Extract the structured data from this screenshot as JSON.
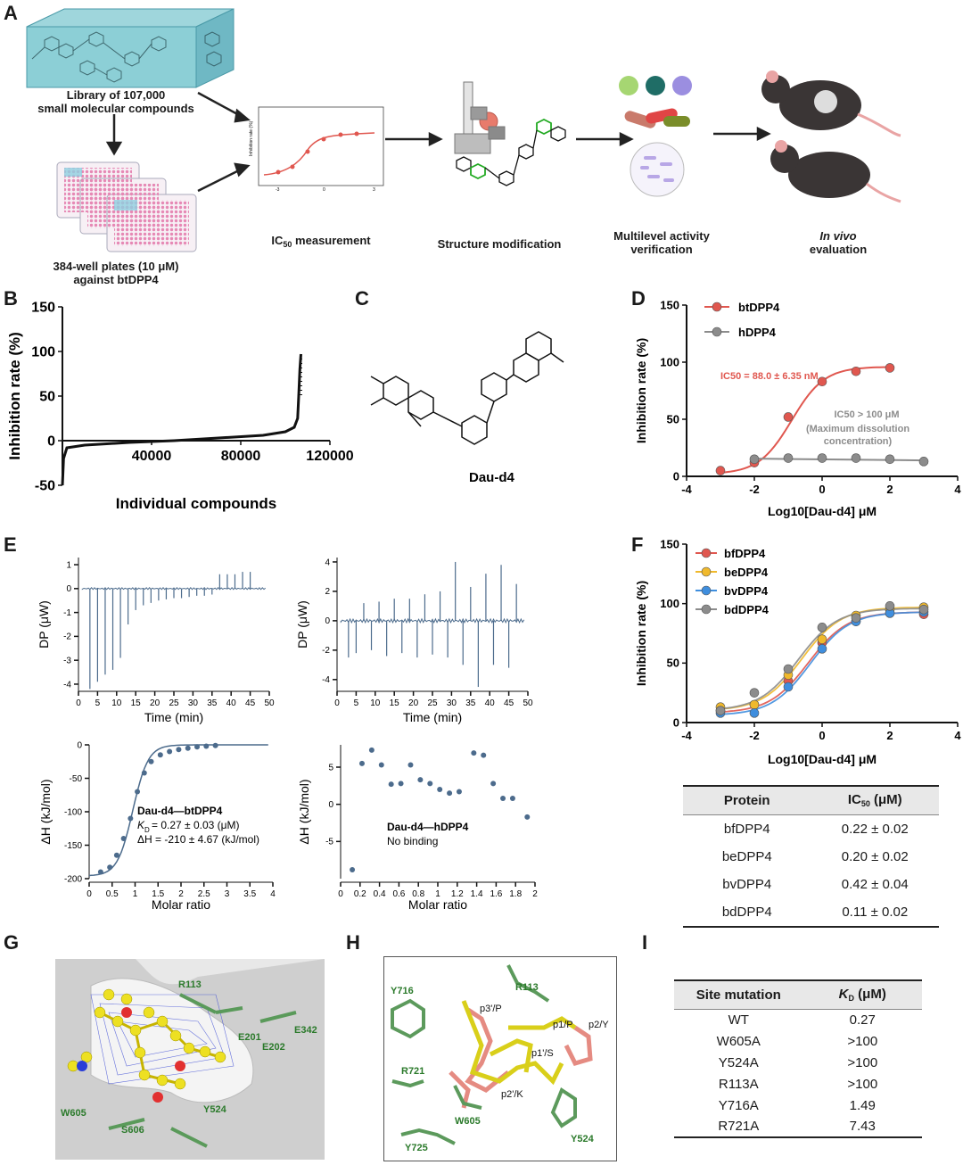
{
  "panelA": {
    "label": "A",
    "library": "Library of 107,000\nsmall molecular compounds",
    "plates": "384-well plates (10 μM)\nagainst btDPP4",
    "ic50_measurement": "measurement",
    "ic50_prefix": "IC",
    "ic50_sub": "50",
    "structure": "Structure modification",
    "multilevel": "Multilevel activity\nverification",
    "invivo_1": "In vivo",
    "invivo_2": "evaluation",
    "mini_ylabel": "Inhibition rate (%)"
  },
  "chart_data": [
    {
      "panel": "B",
      "type": "line",
      "xlabel": "Individual compounds",
      "ylabel": "Inhibition rate (%)",
      "xlim": [
        0,
        120000
      ],
      "ylim": [
        -50,
        150
      ],
      "xticks": [
        "40000",
        "80000",
        "120000"
      ],
      "yticks": [
        "150",
        "100",
        "50",
        "0",
        "-50"
      ],
      "x": [
        0,
        500,
        2000,
        10000,
        30000,
        50000,
        70000,
        90000,
        100000,
        104000,
        105500,
        106000,
        106500,
        107000
      ],
      "y": [
        -50,
        -20,
        -8,
        -5,
        -2,
        0,
        3,
        6,
        10,
        15,
        25,
        50,
        80,
        97
      ]
    },
    {
      "panel": "D",
      "type": "line",
      "xlabel": "Log10[Dau-d4] μM",
      "ylabel": "Inhibition rate (%)",
      "xlim": [
        -4,
        4
      ],
      "ylim": [
        0,
        150
      ],
      "xticks": [
        "-4",
        "-2",
        "0",
        "2",
        "4"
      ],
      "yticks": [
        "0",
        "50",
        "100",
        "150"
      ],
      "series": [
        {
          "name": "btDPP4",
          "color": "#e0574f",
          "x": [
            -3,
            -2,
            -1,
            0,
            1,
            2
          ],
          "y": [
            5,
            12,
            52,
            83,
            92,
            95
          ]
        },
        {
          "name": "hDPP4",
          "color": "#8c8c8c",
          "x": [
            -2,
            -1,
            0,
            1,
            2,
            3
          ],
          "y": [
            15,
            16,
            16,
            16,
            15,
            13
          ]
        }
      ],
      "annotations": [
        "IC50 = 88.0 ± 6.35 nM",
        "IC50 > 100 μM",
        "(Maximum dissolution",
        "concentration)"
      ]
    },
    {
      "panel": "E-top-left",
      "type": "line",
      "xlabel": "Time (min)",
      "ylabel": "DP (μW)",
      "xlim": [
        0,
        50
      ],
      "ylim": [
        -4.3,
        1.3
      ],
      "xticks": [
        "0",
        "5",
        "10",
        "15",
        "20",
        "25",
        "30",
        "35",
        "40",
        "45",
        "50"
      ],
      "yticks": [
        "1",
        "0",
        "-1",
        "-2",
        "-3",
        "-4"
      ],
      "injections": [
        3,
        5,
        7,
        9,
        11,
        13,
        15,
        17,
        19,
        21,
        23,
        25,
        27,
        29,
        31,
        33,
        35,
        37,
        39,
        41,
        43,
        45
      ],
      "peaks": [
        -4.2,
        -3.9,
        -3.6,
        -3.4,
        -2.9,
        -1.5,
        -0.9,
        -0.7,
        -0.6,
        -0.5,
        -0.45,
        -0.4,
        -0.4,
        -0.35,
        -0.3,
        -0.3,
        -0.25,
        0.6,
        0.6,
        0.6,
        0.7,
        0.7
      ]
    },
    {
      "panel": "E-top-right",
      "type": "line",
      "xlabel": "Time (min)",
      "ylabel": "DP (μW)",
      "xlim": [
        0,
        50
      ],
      "ylim": [
        -4.8,
        4.3
      ],
      "xticks": [
        "0",
        "5",
        "10",
        "15",
        "20",
        "25",
        "30",
        "35",
        "40",
        "45",
        "50"
      ],
      "yticks": [
        "4",
        "2",
        "0",
        "-2",
        "-4"
      ],
      "injections": [
        3,
        5,
        7,
        9,
        11,
        13,
        15,
        17,
        19,
        21,
        23,
        25,
        27,
        29,
        31,
        33,
        35,
        37,
        39,
        41,
        43,
        45,
        47
      ],
      "peaks": [
        -2.5,
        -2.2,
        1.2,
        -2.0,
        1.3,
        -2.4,
        1.5,
        -2.2,
        1.5,
        -2.5,
        1.8,
        -2.3,
        2.0,
        -2.5,
        4.0,
        -3.0,
        2.3,
        -4.5,
        3.2,
        -3.0,
        3.8,
        -3.2,
        2.5
      ]
    },
    {
      "panel": "E-bottom-left",
      "type": "scatter",
      "xlabel": "Molar ratio",
      "ylabel": "ΔH (kJ/mol)",
      "xlim": [
        0,
        4
      ],
      "ylim": [
        -200,
        0
      ],
      "xticks": [
        "0",
        "0.5",
        "1",
        "1.5",
        "2",
        "2.5",
        "3",
        "3.5",
        "4"
      ],
      "yticks": [
        "0",
        "-50",
        "-100",
        "-150",
        "-200"
      ],
      "x": [
        0.25,
        0.45,
        0.6,
        0.75,
        0.9,
        1.05,
        1.2,
        1.35,
        1.55,
        1.75,
        1.95,
        2.15,
        2.35,
        2.55,
        2.75
      ],
      "y": [
        -190,
        -183,
        -165,
        -140,
        -110,
        -70,
        -42,
        -25,
        -15,
        -10,
        -7,
        -5,
        -3,
        -2,
        -1
      ],
      "annotation": [
        "Dau-d4—btDPP4",
        "K",
        "D",
        " = 0.27 ± 0.03 (μM)",
        "ΔH = -210 ± 4.67 (kJ/mol)"
      ]
    },
    {
      "panel": "E-bottom-right",
      "type": "scatter",
      "xlabel": "Molar ratio",
      "ylabel": "ΔH (kJ/mol)",
      "xlim": [
        0,
        2
      ],
      "ylim": [
        -10,
        8
      ],
      "xticks": [
        "0",
        "0.2",
        "0.4",
        "0.6",
        "0.8",
        "1",
        "1.2",
        "1.4",
        "1.6",
        "1.8",
        "2"
      ],
      "yticks": [
        "5",
        "0",
        "-5"
      ],
      "x": [
        0.12,
        0.22,
        0.32,
        0.42,
        0.52,
        0.62,
        0.72,
        0.82,
        0.92,
        1.02,
        1.12,
        1.22,
        1.37,
        1.47,
        1.57,
        1.67,
        1.77,
        1.92
      ],
      "y": [
        -8.8,
        5.5,
        7.3,
        5.3,
        2.7,
        2.8,
        5.3,
        3.3,
        2.8,
        2.0,
        1.5,
        1.7,
        6.9,
        6.6,
        2.8,
        0.8,
        0.8,
        -1.7
      ],
      "annotation": [
        "Dau-d4—hDPP4",
        "No binding"
      ]
    },
    {
      "panel": "F",
      "type": "line",
      "xlabel": "Log10[Dau-d4] μM",
      "ylabel": "Inhibition rate (%)",
      "xlim": [
        -4,
        4
      ],
      "ylim": [
        0,
        150
      ],
      "xticks": [
        "-4",
        "-2",
        "0",
        "2",
        "4"
      ],
      "yticks": [
        "0",
        "50",
        "100",
        "150"
      ],
      "series": [
        {
          "name": "bfDPP4",
          "color": "#e0574f",
          "x": [
            -3,
            -2,
            -1,
            0,
            1,
            2,
            3
          ],
          "y": [
            10,
            15,
            35,
            67,
            85,
            92,
            91
          ]
        },
        {
          "name": "beDPP4",
          "color": "#f0b92c",
          "x": [
            -3,
            -2,
            -1,
            0,
            1,
            2,
            3
          ],
          "y": [
            13,
            15,
            40,
            70,
            90,
            95,
            97
          ]
        },
        {
          "name": "bvDPP4",
          "color": "#3f8ede",
          "x": [
            -3,
            -2,
            -1,
            0,
            1,
            2,
            3
          ],
          "y": [
            8,
            8,
            30,
            62,
            85,
            92,
            93
          ]
        },
        {
          "name": "bdDPP4",
          "color": "#8c8c8c",
          "x": [
            -3,
            -2,
            -1,
            0,
            1,
            2,
            3
          ],
          "y": [
            10,
            25,
            45,
            80,
            88,
            98,
            95
          ]
        }
      ]
    }
  ],
  "panelC": {
    "label": "C",
    "compound": "Dau-d4"
  },
  "tableF": {
    "head": [
      "Protein",
      "IC",
      "50",
      " (μM)"
    ],
    "rows": [
      [
        "bfDPP4",
        "0.22 ± 0.02"
      ],
      [
        "beDPP4",
        "0.20 ± 0.02"
      ],
      [
        "bvDPP4",
        "0.42 ± 0.04"
      ],
      [
        "bdDPP4",
        "0.11 ± 0.02"
      ]
    ]
  },
  "panelG": {
    "label": "G",
    "residues": [
      "R113",
      "E201",
      "E342",
      "E202",
      "W605",
      "S606",
      "Y524"
    ]
  },
  "panelH": {
    "label": "H",
    "residues": [
      "Y716",
      "R113",
      "R721",
      "W605",
      "Y725",
      "Y524"
    ],
    "pockets": [
      "p3'/P",
      "p1/P",
      "p2/Y",
      "p1'/S",
      "p2'/K"
    ]
  },
  "tableI": {
    "label": "I",
    "head": [
      "Site mutation",
      "K",
      "D",
      " (μM)"
    ],
    "rows": [
      [
        "WT",
        "0.27"
      ],
      [
        "W605A",
        ">100"
      ],
      [
        "Y524A",
        ">100"
      ],
      [
        "R113A",
        ">100"
      ],
      [
        "Y716A",
        "1.49"
      ],
      [
        "R721A",
        "7.43"
      ]
    ]
  },
  "labels": {
    "B": "B",
    "D": "D",
    "E": "E",
    "F": "F"
  }
}
